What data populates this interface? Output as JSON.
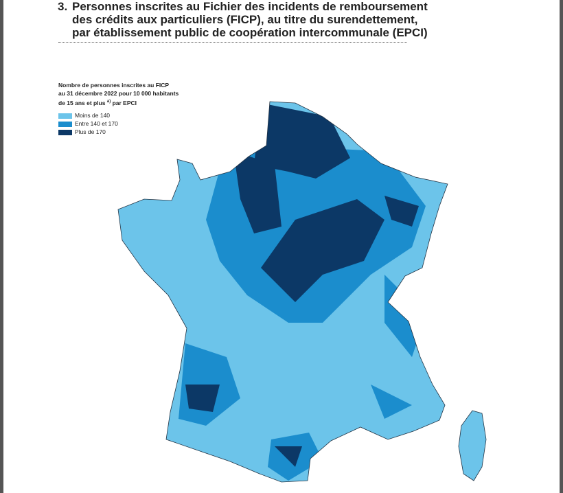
{
  "header": {
    "number": "3.",
    "title_lines": [
      "Personnes inscrites au Fichier des incidents de remboursement",
      "des crédits aux particuliers (FICP), au titre du surendettement,",
      "par établissement public de coopération intercommunale (EPCI)"
    ]
  },
  "legend": {
    "title_lines": [
      "Nombre de personnes inscrites au FICP",
      "au 31 décembre 2022 pour 10 000 habitants"
    ],
    "last_line": {
      "text": "de 15 ans et plus",
      "sup": "a)",
      "after": "par EPCI"
    },
    "items": [
      {
        "label": "Moins de 140",
        "color": "#6cc4ea"
      },
      {
        "label": "Entre 140 et 170",
        "color": "#1b8dcd"
      },
      {
        "label": "Plus de 170",
        "color": "#0c3866"
      }
    ]
  }
}
